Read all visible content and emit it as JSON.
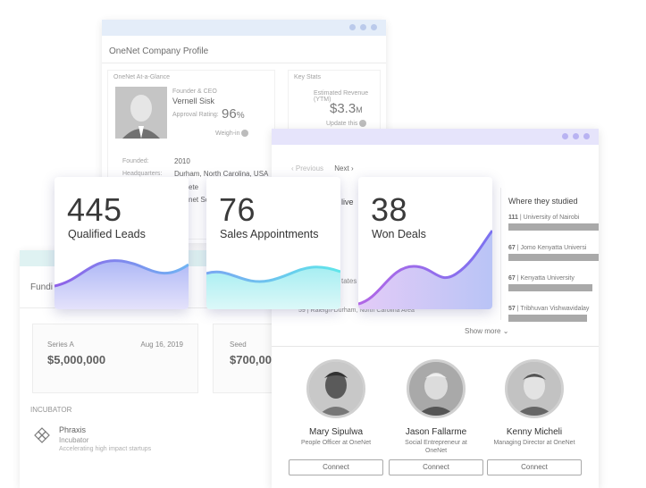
{
  "profile": {
    "title": "OneNet Company Profile",
    "glance_title": "OneNet At-a-Glance",
    "founder_role": "Founder & CEO",
    "founder_name": "Vernell Sisk",
    "approval_label": "Approval Rating:",
    "approval_value": "96",
    "approval_unit": "%",
    "weigh_in": "Weigh-in",
    "founded_label": "Founded:",
    "founded_value": "2010",
    "hq_label": "Headquarters:",
    "hq_value": "Durham, North Carolina, USA",
    "website_partial": "ete",
    "desc_partial": "net Sol",
    "key_stats_title": "Key Stats",
    "revenue_label": "Estimated Revenue (YTM)",
    "revenue_value": "$3.3",
    "revenue_unit": "M",
    "update_label": "Update this"
  },
  "people": {
    "prev_label": "Previous",
    "next_label": "Next",
    "live_partial": "live",
    "states_partial": "tates",
    "location_row_num": "59",
    "location_row_text": "Raleigh-Durham, North Carolina Area",
    "show_more": "Show more",
    "studied_title": "Where they studied",
    "schools": [
      {
        "count": "111",
        "name": "University of Nairobi",
        "fill": 1.0
      },
      {
        "count": "67",
        "name": "Jomo Kenyatta Universi",
        "fill": 1.0
      },
      {
        "count": "67",
        "name": "Kenyatta University",
        "fill": 0.9
      },
      {
        "count": "57",
        "name": "Tribhuvan Vishwavidalay",
        "fill": 0.85
      }
    ],
    "members": [
      {
        "name": "Mary Sipulwa",
        "title_line1": "People Officer at OneNet",
        "title_line2": "",
        "connect": "Connect"
      },
      {
        "name": "Jason Fallarme",
        "title_line1": "Social Entrepreneur at",
        "title_line2": "OneNet",
        "connect": "Connect"
      },
      {
        "name": "Kenny Micheli",
        "title_line1": "Managing Director at OneNet",
        "title_line2": "",
        "connect": "Connect"
      }
    ]
  },
  "funding": {
    "title_partial": "Fundi",
    "round1_type": "Series A",
    "round1_date": "Aug 16, 2019",
    "round1_amount": "$5,000,000",
    "round2_type": "Seed",
    "round2_amount": "$700,00",
    "incubator_header": "INCUBATOR",
    "incubator_name": "Phraxis",
    "incubator_type": "Incubator",
    "incubator_desc": "Accelerating high impact startups"
  },
  "metrics": [
    {
      "value": "445",
      "label": "Qualified Leads"
    },
    {
      "value": "76",
      "label": "Sales Appointments"
    },
    {
      "value": "38",
      "label": "Won Deals"
    }
  ],
  "colors": {
    "titlebar_blue": "#dde8f8",
    "titlebar_purple": "#e6e4fb",
    "titlebar_teal": "#d7efef",
    "wave1": "#7b8cf0",
    "wave2": "#6fe0ea",
    "wave3": "#8b6ff0"
  },
  "icons": [
    "pinwheel-logo-icon",
    "gear-icon",
    "chevron-left-icon",
    "chevron-right-icon",
    "chevron-down-icon"
  ]
}
